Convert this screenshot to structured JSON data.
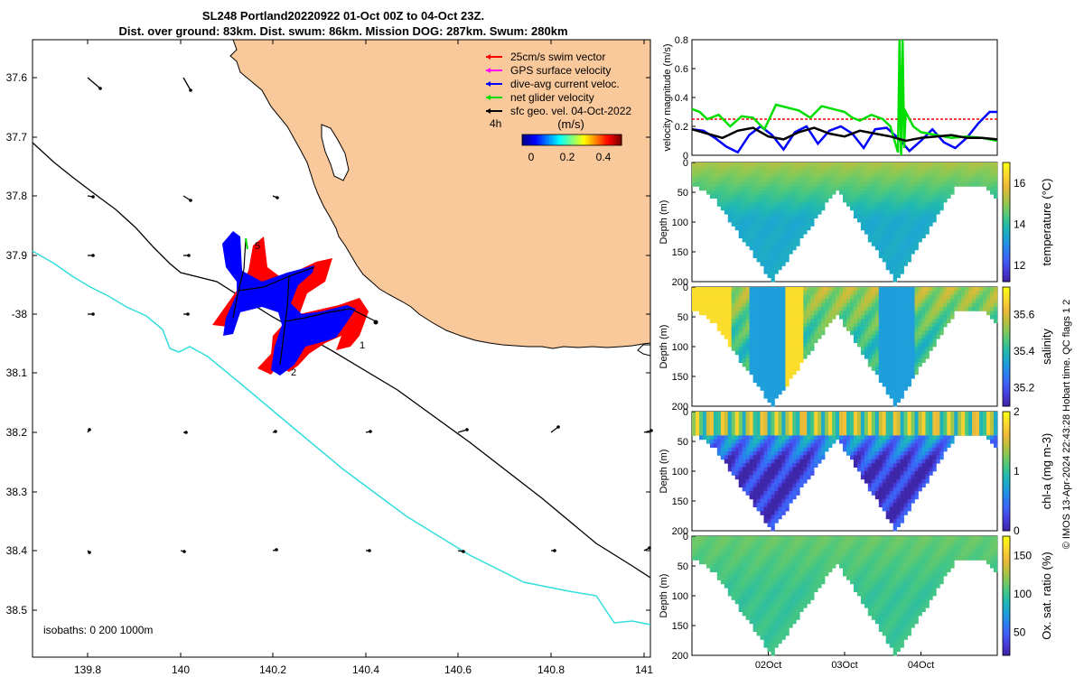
{
  "title_line1": "SL248 Portland20220922 01-Oct 00Z to 04-Oct 23Z.",
  "title_line2": "Dist. over ground: 83km. Dist. swum: 86km. Mission DOG: 287km. Swum: 280km",
  "side_label": "© IMOS 13-Apr-2024 22:43:28 Hobart time. QC flags 1  2",
  "colors": {
    "land": "#f9c89b",
    "isobath_shallow": "#000000",
    "isobath_deep": "#33dddd",
    "swim": "#ff0000",
    "gps": "#ff00ff",
    "current": "#0000ff",
    "net": "#00dd00",
    "geo": "#000000",
    "mean_line": "#ff0000"
  },
  "map": {
    "lon_range": [
      139.68,
      141.0
    ],
    "lat_range": [
      37.53,
      38.58
    ],
    "lat_ticks": [
      "37.6",
      "37.7",
      "37.8",
      "37.9",
      "-38",
      "38.1",
      "38.2",
      "38.3",
      "38.4",
      "38.5"
    ],
    "lon_ticks": [
      "139.8",
      "140",
      "140.2",
      "140.4",
      "140.6",
      "140.8",
      "141"
    ],
    "isobaths_label": "isobaths: 0   200  1000m",
    "legend": [
      {
        "label": "25cm/s swim vector",
        "color": "#ff0000"
      },
      {
        "label": "GPS surface velocity",
        "color": "#ff00ff"
      },
      {
        "label": "dive-avg current veloc.",
        "color": "#0000ff"
      },
      {
        "label": "net glider velocity",
        "color": "#00dd00"
      },
      {
        "label": "sfc geo. vel. 04-Oct-2022",
        "color": "#000000"
      }
    ],
    "interval_label": "4h",
    "colorbar_title": "(m/s)",
    "colorbar_ticks": [
      "0",
      "0.2",
      "0.4"
    ],
    "colorbar_range": [
      -0.05,
      0.5
    ],
    "track_labels": [
      "1",
      "2",
      "5"
    ]
  },
  "chart_data": [
    {
      "type": "line",
      "ylabel": "velocity magnitude (m/s)",
      "ylim": [
        0,
        0.8
      ],
      "yticks": [
        "0",
        "0.2",
        "0.4",
        "0.6",
        "0.8"
      ],
      "x_range_days": [
        0.0,
        4.0
      ],
      "mean_speed": 0.25,
      "series": [
        {
          "color": "#0000ff",
          "x": [
            0.0,
            0.15,
            0.3,
            0.45,
            0.6,
            0.75,
            0.9,
            1.05,
            1.2,
            1.35,
            1.5,
            1.65,
            1.8,
            1.95,
            2.1,
            2.25,
            2.4,
            2.55,
            2.7,
            2.85,
            3.0,
            3.15,
            3.3,
            3.45,
            3.6,
            3.75,
            3.9,
            4.0
          ],
          "values": [
            0.18,
            0.17,
            0.12,
            0.06,
            0.02,
            0.14,
            0.2,
            0.14,
            0.04,
            0.16,
            0.2,
            0.08,
            0.17,
            0.2,
            0.15,
            0.05,
            0.18,
            0.19,
            0.12,
            0.03,
            0.1,
            0.18,
            0.09,
            0.05,
            0.12,
            0.22,
            0.3,
            0.3
          ]
        },
        {
          "color": "#00dd00",
          "x": [
            0.0,
            0.1,
            0.2,
            0.35,
            0.5,
            0.65,
            0.8,
            0.95,
            1.1,
            1.25,
            1.4,
            1.55,
            1.7,
            1.85,
            2.0,
            2.1,
            2.2,
            2.35,
            2.5,
            2.6,
            2.7,
            2.72,
            2.74,
            2.76,
            2.78,
            2.8,
            2.9,
            3.0,
            3.2,
            3.4,
            3.6,
            3.8,
            4.0
          ],
          "values": [
            0.32,
            0.3,
            0.25,
            0.28,
            0.2,
            0.27,
            0.26,
            0.18,
            0.35,
            0.33,
            0.31,
            0.26,
            0.34,
            0.32,
            0.3,
            0.26,
            0.24,
            0.28,
            0.25,
            0.2,
            0.02,
            0.8,
            0.0,
            0.8,
            0.05,
            0.3,
            0.2,
            0.16,
            0.14,
            0.12,
            0.13,
            0.12,
            0.1
          ]
        },
        {
          "color": "#000000",
          "x": [
            0.0,
            0.2,
            0.4,
            0.6,
            0.8,
            1.0,
            1.2,
            1.4,
            1.6,
            1.8,
            2.0,
            2.2,
            2.4,
            2.6,
            2.8,
            3.0,
            3.2,
            3.4,
            3.6,
            3.8,
            4.0
          ],
          "values": [
            0.18,
            0.15,
            0.12,
            0.17,
            0.19,
            0.13,
            0.11,
            0.16,
            0.19,
            0.15,
            0.13,
            0.17,
            0.15,
            0.13,
            0.1,
            0.12,
            0.13,
            0.14,
            0.12,
            0.12,
            0.11
          ]
        }
      ]
    },
    {
      "type": "heatmap",
      "name": "temperature",
      "clabel": "temperature (°C)",
      "ylabel": "Depth (m)",
      "yticks": [
        "0",
        "50",
        "100",
        "150",
        "200"
      ],
      "crange": [
        11.2,
        17.0
      ],
      "cticks": [
        {
          "v": 12,
          "l": "12"
        },
        {
          "v": 14,
          "l": "14"
        },
        {
          "v": 16,
          "l": "16"
        }
      ],
      "surface_value": 15.2,
      "deep_value": 13.5,
      "mid_value": 14.3,
      "mid_width": 0.15
    },
    {
      "type": "heatmap",
      "name": "salinity",
      "clabel": "salinity",
      "ylabel": "Depth (m)",
      "yticks": [
        "0",
        "50",
        "100",
        "150",
        "200"
      ],
      "crange": [
        35.1,
        35.75
      ],
      "cticks": [
        {
          "v": 35.2,
          "l": "35.2"
        },
        {
          "v": 35.4,
          "l": "35.4"
        },
        {
          "v": 35.6,
          "l": "35.6"
        }
      ],
      "surface_value": 35.55,
      "deep_value": 35.42,
      "mid_value": 35.45,
      "mid_width": 0.1
    },
    {
      "type": "heatmap",
      "name": "chl-a",
      "clabel": "chl-a (mg m-3)",
      "ylabel": "Depth (m)",
      "yticks": [
        "0",
        "50",
        "100",
        "150",
        "200"
      ],
      "crange": [
        0,
        2
      ],
      "cticks": [
        {
          "v": 0,
          "l": "0"
        },
        {
          "v": 1,
          "l": "1"
        },
        {
          "v": 2,
          "l": "2"
        }
      ],
      "surface_value": 1.1,
      "deep_value": 0.1,
      "mid_value": 1.3,
      "mid_width": 0.5
    },
    {
      "type": "heatmap",
      "name": "oxygen",
      "clabel": "Ox. sat. ratio (%)",
      "ylabel": "Depth (m)",
      "yticks": [
        "0",
        "50",
        "100",
        "150",
        "200"
      ],
      "crange": [
        20,
        175
      ],
      "cticks": [
        {
          "v": 50,
          "l": "50"
        },
        {
          "v": 100,
          "l": "100"
        },
        {
          "v": 150,
          "l": "150"
        }
      ],
      "surface_value": 112,
      "deep_value": 100,
      "mid_value": 106,
      "mid_width": 6
    }
  ],
  "time_axis": {
    "ticks": [
      {
        "day": 1.0,
        "label": "02Oct"
      },
      {
        "day": 2.0,
        "label": "03Oct"
      },
      {
        "day": 3.0,
        "label": "04Oct"
      }
    ]
  }
}
